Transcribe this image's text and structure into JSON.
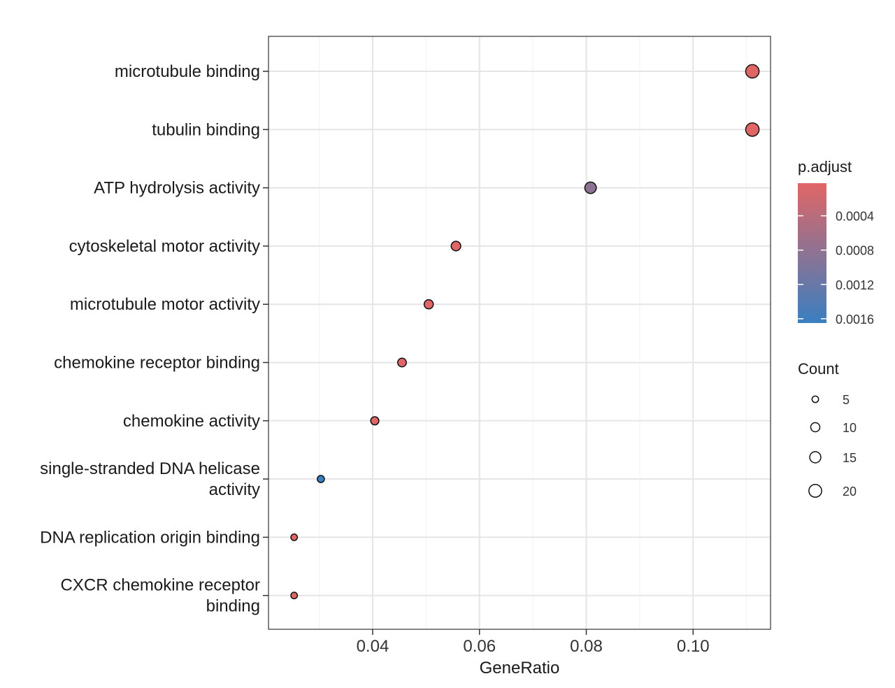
{
  "chart_data": {
    "type": "scatter",
    "title": "",
    "xlabel": "GeneRatio",
    "ylabel": "",
    "xlim": [
      0.0205,
      0.1145
    ],
    "x_ticks": [
      0.04,
      0.06,
      0.08,
      0.1
    ],
    "x_tick_labels": [
      "0.04",
      "0.06",
      "0.08",
      "0.10"
    ],
    "grid": true,
    "categories": [
      "microtubule binding",
      "tubulin binding",
      "ATP hydrolysis activity",
      "cytoskeletal motor activity",
      "microtubule motor activity",
      "chemokine receptor binding",
      "chemokine activity",
      "single-stranded DNA helicase activity",
      "DNA replication origin binding",
      "CXCR chemokine receptor binding"
    ],
    "category_label_lines": [
      [
        "microtubule binding"
      ],
      [
        "tubulin binding"
      ],
      [
        "ATP hydrolysis activity"
      ],
      [
        "cytoskeletal motor activity"
      ],
      [
        "microtubule motor activity"
      ],
      [
        "chemokine receptor binding"
      ],
      [
        "chemokine activity"
      ],
      [
        "single-stranded DNA helicase",
        "activity"
      ],
      [
        "DNA replication origin binding"
      ],
      [
        "CXCR chemokine receptor",
        "binding"
      ]
    ],
    "points": [
      {
        "term": "microtubule binding",
        "gene_ratio": 0.1111,
        "count": 22,
        "p_adjust": 2e-05
      },
      {
        "term": "tubulin binding",
        "gene_ratio": 0.1111,
        "count": 22,
        "p_adjust": 2e-05
      },
      {
        "term": "ATP hydrolysis activity",
        "gene_ratio": 0.0808,
        "count": 16,
        "p_adjust": 0.00084
      },
      {
        "term": "cytoskeletal motor activity",
        "gene_ratio": 0.0556,
        "count": 11,
        "p_adjust": 2e-05
      },
      {
        "term": "microtubule motor activity",
        "gene_ratio": 0.0505,
        "count": 10,
        "p_adjust": 2e-05
      },
      {
        "term": "chemokine receptor binding",
        "gene_ratio": 0.0455,
        "count": 9,
        "p_adjust": 5e-05
      },
      {
        "term": "chemokine activity",
        "gene_ratio": 0.0404,
        "count": 8,
        "p_adjust": 2e-05
      },
      {
        "term": "single-stranded DNA helicase activity",
        "gene_ratio": 0.0303,
        "count": 6,
        "p_adjust": 0.00165
      },
      {
        "term": "DNA replication origin binding",
        "gene_ratio": 0.0253,
        "count": 5,
        "p_adjust": 2e-05
      },
      {
        "term": "CXCR chemokine receptor binding",
        "gene_ratio": 0.0253,
        "count": 5,
        "p_adjust": 2e-05
      }
    ],
    "color_legend": {
      "title": "p.adjust",
      "low_value": 2e-05,
      "high_value": 0.00165,
      "low_color": "#e06666",
      "high_color": "#3a7fc0",
      "ticks": [
        0.0004,
        0.0008,
        0.0012,
        0.0016
      ],
      "tick_labels": [
        "0.0004",
        "0.0008",
        "0.0012",
        "0.0016"
      ]
    },
    "size_legend": {
      "title": "Count",
      "values": [
        5,
        10,
        15,
        20
      ],
      "labels": [
        "5",
        "10",
        "15",
        "20"
      ]
    },
    "legend_position": "right"
  }
}
